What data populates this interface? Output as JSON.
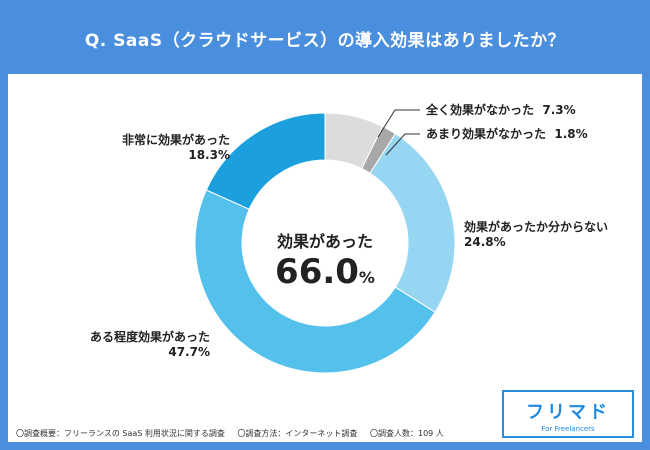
{
  "header": {
    "title": "Q. SaaS（クラウドサービス）の導入効果はありましたか？"
  },
  "colors": {
    "background": "#4a8fde",
    "panel": "#ffffff",
    "accent": "#1f8ae0"
  },
  "chart_data": {
    "type": "pie",
    "title": "Q. SaaS（クラウドサービス）の導入効果はありましたか？",
    "donut": true,
    "center_label": "効果があった",
    "center_value": "66.0",
    "center_unit": "%",
    "slices": [
      {
        "label": "全く効果がなかった",
        "value": 7.3,
        "value_label": "7.3%",
        "color": "#dcdcdc"
      },
      {
        "label": "あまり効果がなかった",
        "value": 1.8,
        "value_label": "1.8%",
        "color": "#a8a8a8"
      },
      {
        "label": "効果があったか分からない",
        "value": 24.8,
        "value_label": "24.8%",
        "color": "#96d6f2"
      },
      {
        "label": "ある程度効果があった",
        "value": 47.7,
        "value_label": "47.7%",
        "color": "#54c0ec"
      },
      {
        "label": "非常に効果があった",
        "value": 18.3,
        "value_label": "18.3%",
        "color": "#1ba0dd"
      }
    ]
  },
  "footnote": {
    "survey_summary": "〇調査概要：フリーランスの SaaS 利用状況に関する調査",
    "survey_method": "〇調査方法：インターネット調査",
    "respondents": "〇調査人数：109 人"
  },
  "logo": {
    "name": "フリマド",
    "tagline": "For Freelancers"
  }
}
